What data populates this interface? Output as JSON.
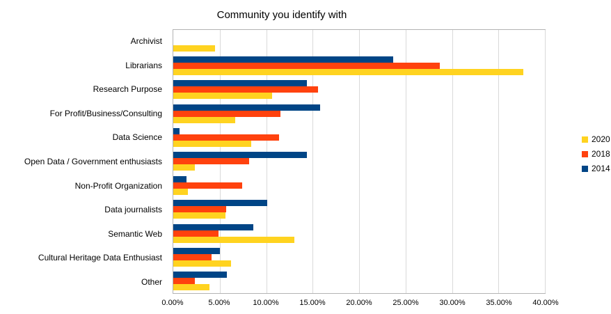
{
  "chart_data": {
    "type": "bar",
    "orientation": "horizontal",
    "title": "Community you identify with",
    "categories": [
      "Archivist",
      "Librarians",
      "Research Purpose",
      "For Profit/Business/Consulting",
      "Data Science",
      "Open Data / Government enthusiasts",
      "Non-Profit Organization",
      "Data journalists",
      "Semantic Web",
      "Cultural Heritage Data Enthusiast",
      "Other"
    ],
    "series": [
      {
        "name": "2020",
        "color": "#FFD320",
        "values": [
          4.5,
          37.7,
          10.6,
          6.7,
          8.4,
          2.3,
          1.6,
          5.6,
          13.0,
          6.2,
          3.9
        ]
      },
      {
        "name": "2018",
        "color": "#FF420E",
        "values": [
          0,
          28.7,
          15.6,
          11.5,
          11.4,
          8.2,
          7.4,
          5.7,
          4.9,
          4.1,
          2.3
        ]
      },
      {
        "name": "2014",
        "color": "#004586",
        "values": [
          0,
          23.7,
          14.4,
          15.8,
          0.7,
          14.4,
          1.4,
          10.1,
          8.6,
          5.0,
          5.8
        ]
      }
    ],
    "xlim": [
      0,
      40
    ],
    "x_tick_labels": [
      "0.00%",
      "5.00%",
      "10.00%",
      "15.00%",
      "20.00%",
      "25.00%",
      "30.00%",
      "35.00%",
      "40.00%"
    ],
    "grid": true,
    "legend_position": "right"
  }
}
